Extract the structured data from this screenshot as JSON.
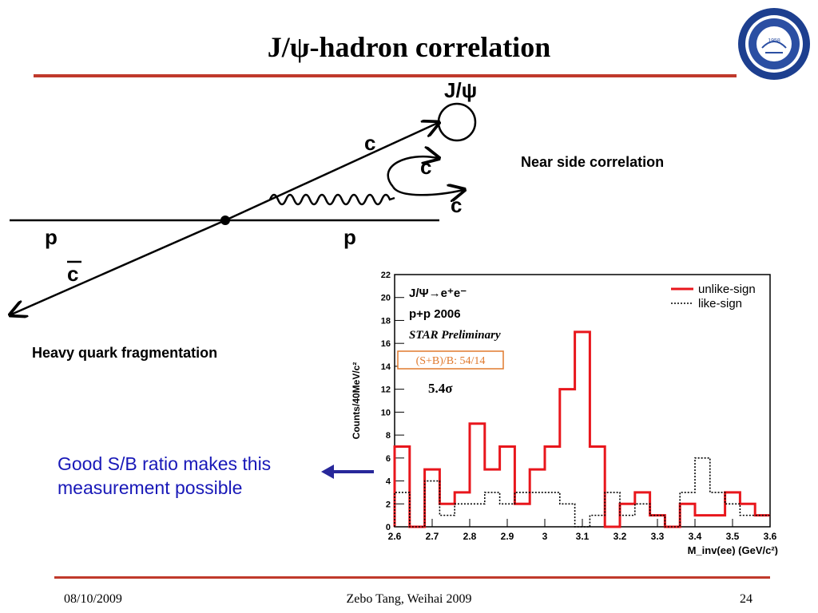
{
  "title": "J/ψ-hadron correlation",
  "logo": {
    "year": "1958",
    "text": "University of Science and Technology of China"
  },
  "diagram": {
    "labels": {
      "jpsi": "J/ψ",
      "c_top": "c",
      "c_mid": "c",
      "c_right": "c",
      "p_left": "p",
      "p_right": "p",
      "cbar": "c"
    }
  },
  "labels": {
    "near_side": "Near side correlation",
    "heavy_quark": "Heavy quark fragmentation",
    "good_sb": "Good S/B ratio makes this measurement possible"
  },
  "chart_data": {
    "type": "line",
    "ylabel": "Counts/40MeV/c²",
    "xlabel": "M_inv(ee) (GeV/c²)",
    "xlim": [
      2.6,
      3.6
    ],
    "ylim": [
      0,
      22
    ],
    "xticks": [
      "2.6",
      "2.7",
      "2.8",
      "2.9",
      "3",
      "3.1",
      "3.2",
      "3.3",
      "3.4",
      "3.5",
      "3.6"
    ],
    "yticks": [
      "0",
      "2",
      "4",
      "6",
      "8",
      "10",
      "12",
      "14",
      "16",
      "18",
      "20",
      "22"
    ],
    "bin_edges": [
      2.6,
      2.64,
      2.68,
      2.72,
      2.76,
      2.8,
      2.84,
      2.88,
      2.92,
      2.96,
      3.0,
      3.04,
      3.08,
      3.12,
      3.16,
      3.2,
      3.24,
      3.28,
      3.32,
      3.36,
      3.4,
      3.44,
      3.48,
      3.52,
      3.56,
      3.6
    ],
    "series": [
      {
        "name": "unlike-sign",
        "color": "#e8161c",
        "style": "solid",
        "values": [
          7,
          0,
          5,
          2,
          3,
          9,
          5,
          7,
          2,
          5,
          7,
          12,
          17,
          7,
          0,
          2,
          3,
          1,
          0,
          2,
          1,
          1,
          3,
          2,
          1
        ]
      },
      {
        "name": "like-sign",
        "color": "#000000",
        "style": "dotted",
        "values": [
          3,
          0,
          4,
          1,
          2,
          2,
          3,
          2,
          3,
          3,
          3,
          2,
          0,
          1,
          3,
          1,
          2,
          1,
          0,
          3,
          6,
          3,
          2,
          1,
          1
        ]
      }
    ],
    "legend_position": "top-right",
    "annotations": {
      "process": "J/Ψ→e⁺e⁻",
      "run": "p+p 2006",
      "prelim": "STAR Preliminary",
      "sb": "(S+B)/B: 54/14",
      "sigma": "5.4σ"
    }
  },
  "footer": {
    "date": "08/10/2009",
    "author": "Zebo Tang, Weihai 2009",
    "page": "24"
  }
}
